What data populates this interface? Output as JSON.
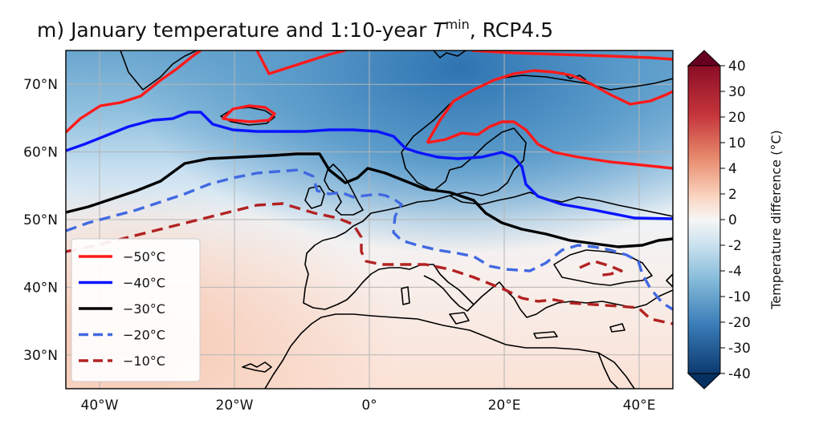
{
  "figure": {
    "panel_label": "m)",
    "title_prefix": "January temperature and 1:10-year ",
    "title_symbol": "T",
    "title_superscript": "min",
    "title_suffix": ", RCP4.5"
  },
  "map": {
    "lon_ticks": [
      {
        "value": -40,
        "label": "40°W"
      },
      {
        "value": -20,
        "label": "20°W"
      },
      {
        "value": 0,
        "label": "0°"
      },
      {
        "value": 20,
        "label": "20°E"
      },
      {
        "value": 40,
        "label": "40°E"
      }
    ],
    "lat_ticks": [
      {
        "value": 70,
        "label": "70°N"
      },
      {
        "value": 60,
        "label": "60°N"
      },
      {
        "value": 50,
        "label": "50°N"
      },
      {
        "value": 40,
        "label": "40°N"
      },
      {
        "value": 30,
        "label": "30°N"
      }
    ],
    "lon_range": [
      -45,
      45
    ],
    "lat_range": [
      25,
      75
    ],
    "grid": true
  },
  "legend": {
    "placement": "lower-left",
    "entries": [
      {
        "label": "−50°C",
        "color": "#ff1a1a",
        "style": "solid"
      },
      {
        "label": "−40°C",
        "color": "#0a14ff",
        "style": "solid"
      },
      {
        "label": "−30°C",
        "color": "#000000",
        "style": "solid"
      },
      {
        "label": "−20°C",
        "color": "#4169e1",
        "style": "dashed"
      },
      {
        "label": "−10°C",
        "color": "#b22222",
        "style": "dashed"
      }
    ]
  },
  "colorbar": {
    "label": "Temperature difference (°C)",
    "ticks": [
      "40",
      "30",
      "20",
      "10",
      "4",
      "2",
      "0",
      "-2",
      "-4",
      "-10",
      "-20",
      "-30",
      "-40"
    ],
    "max_color": "#67001f",
    "min_color": "#053061"
  }
}
